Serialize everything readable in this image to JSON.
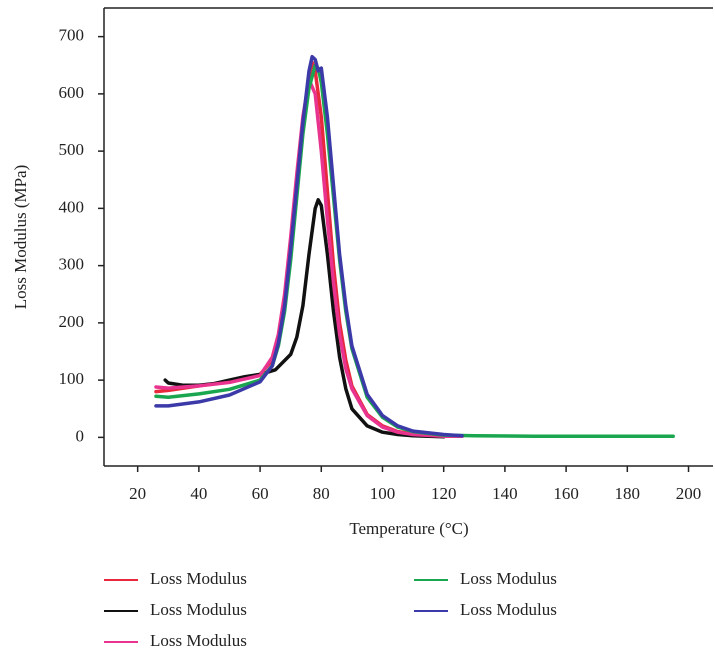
{
  "chart_data": {
    "type": "line",
    "x_label": "Temperature (°C)",
    "y_label": "Loss Modulus (MPa)",
    "xlim": [
      9,
      208
    ],
    "ylim": [
      -50,
      750
    ],
    "xticks": [
      20,
      40,
      60,
      80,
      100,
      120,
      140,
      160,
      180,
      200
    ],
    "yticks": [
      0,
      100,
      200,
      300,
      400,
      500,
      600,
      700
    ],
    "series": [
      {
        "name": "Loss Modulus",
        "color": "#e8283c",
        "x": [
          26,
          30,
          40,
          50,
          60,
          64,
          66,
          68,
          70,
          72,
          74,
          76,
          77,
          78,
          80,
          82,
          84,
          86,
          88,
          90,
          95,
          100,
          105,
          110,
          120,
          126
        ],
        "values": [
          80,
          82,
          90,
          98,
          110,
          135,
          170,
          230,
          320,
          430,
          540,
          630,
          655,
          640,
          560,
          430,
          300,
          200,
          135,
          90,
          40,
          20,
          10,
          6,
          3,
          2
        ]
      },
      {
        "name": "Loss Modulus",
        "color": "#111111",
        "x": [
          29,
          30,
          35,
          40,
          45,
          50,
          55,
          60,
          65,
          70,
          72,
          74,
          76,
          78,
          79,
          80,
          82,
          84,
          86,
          88,
          90,
          95,
          100,
          105,
          110,
          115,
          120
        ],
        "values": [
          100,
          95,
          91,
          91,
          94,
          100,
          106,
          110,
          118,
          145,
          175,
          230,
          320,
          400,
          415,
          405,
          320,
          220,
          140,
          85,
          50,
          20,
          9,
          5,
          3,
          2,
          1
        ]
      },
      {
        "name": "Loss Modulus",
        "color": "#e8338f",
        "x": [
          26,
          30,
          40,
          50,
          60,
          64,
          66,
          68,
          70,
          72,
          74,
          76,
          78,
          80,
          82,
          84,
          86,
          88,
          90,
          95,
          100,
          105,
          110,
          120,
          126
        ],
        "values": [
          88,
          86,
          90,
          96,
          108,
          140,
          180,
          250,
          350,
          460,
          560,
          625,
          600,
          500,
          380,
          270,
          180,
          120,
          85,
          38,
          18,
          9,
          5,
          2,
          2
        ]
      },
      {
        "name": "Loss Modulus",
        "color": "#1aa64f",
        "x": [
          26,
          30,
          40,
          50,
          60,
          64,
          66,
          68,
          70,
          72,
          74,
          76,
          78,
          79,
          80,
          82,
          84,
          86,
          88,
          90,
          95,
          100,
          105,
          110,
          120,
          130,
          150,
          170,
          195
        ],
        "values": [
          72,
          70,
          76,
          84,
          100,
          125,
          160,
          220,
          310,
          420,
          530,
          610,
          650,
          645,
          620,
          530,
          420,
          310,
          220,
          155,
          70,
          35,
          18,
          10,
          4,
          3,
          2,
          2,
          2
        ]
      },
      {
        "name": "Loss Modulus",
        "color": "#3b3aa8",
        "x": [
          26,
          30,
          40,
          50,
          60,
          64,
          66,
          68,
          70,
          72,
          74,
          76,
          77,
          78,
          79,
          80,
          82,
          84,
          86,
          88,
          90,
          95,
          100,
          105,
          110,
          120,
          126
        ],
        "values": [
          55,
          55,
          62,
          74,
          97,
          125,
          165,
          230,
          330,
          440,
          550,
          640,
          665,
          660,
          640,
          645,
          560,
          440,
          320,
          230,
          160,
          75,
          38,
          20,
          11,
          5,
          3
        ]
      }
    ]
  }
}
